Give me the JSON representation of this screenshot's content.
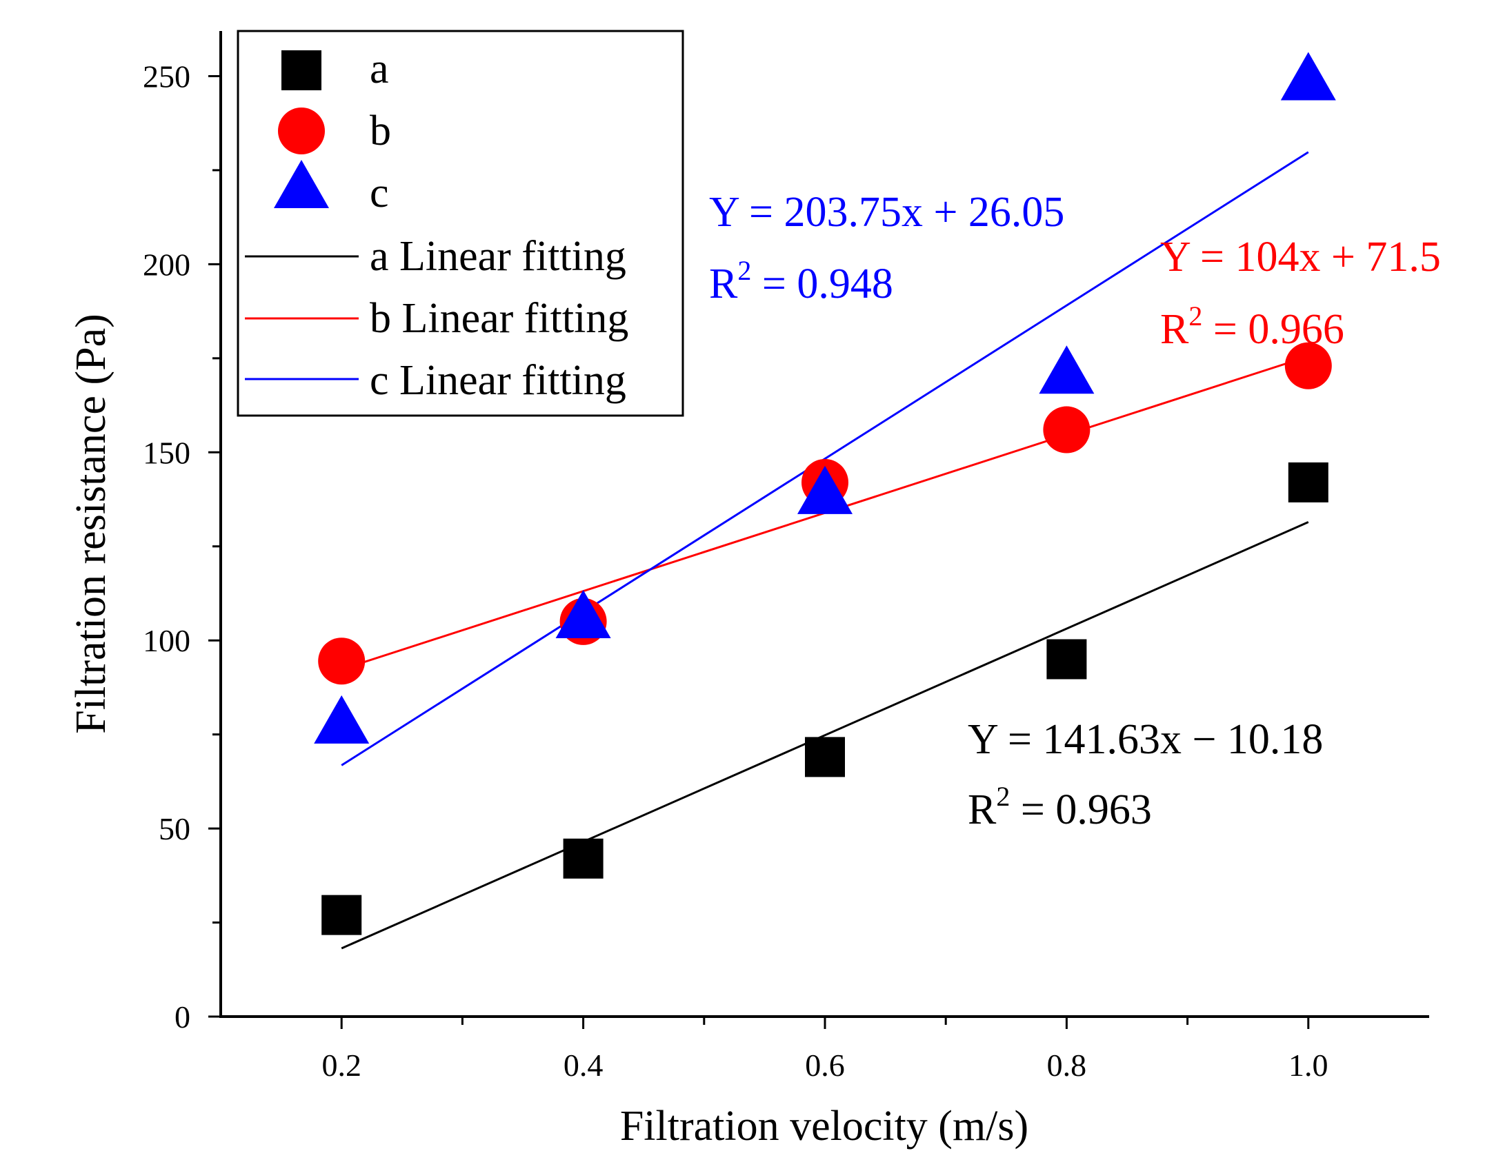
{
  "chart_data": {
    "type": "scatter",
    "title": "",
    "xlabel": "Filtration velocity (m/s)",
    "ylabel": "Filtration resistance (Pa)",
    "xlim": [
      0.1,
      1.1
    ],
    "ylim": [
      0,
      262
    ],
    "x_ticks": [
      0.2,
      0.4,
      0.6,
      0.8,
      1.0
    ],
    "x_tick_labels": [
      "0.2",
      "0.4",
      "0.6",
      "0.8",
      "1.0"
    ],
    "y_ticks": [
      0,
      50,
      100,
      150,
      200,
      250
    ],
    "y_tick_labels": [
      "0",
      "50",
      "100",
      "150",
      "200",
      "250"
    ],
    "grid": false,
    "legend_position": "top-left",
    "series": [
      {
        "name": "a",
        "marker": "square",
        "color": "#000000",
        "x": [
          0.2,
          0.4,
          0.6,
          0.8,
          1.0
        ],
        "values": [
          27,
          42,
          69,
          95,
          142
        ],
        "fit": {
          "name": "a Linear fitting",
          "slope": 141.63,
          "intercept": -10.18,
          "equation": "Y = 141.63x − 10.18",
          "r2_prefix": "R",
          "r2_sup": "2",
          "r2_value": " = 0.963"
        }
      },
      {
        "name": "b",
        "marker": "circle",
        "color": "#ff0000",
        "x": [
          0.2,
          0.4,
          0.6,
          0.8,
          1.0
        ],
        "values": [
          94.5,
          105,
          142,
          156,
          173
        ],
        "fit": {
          "name": "b Linear fitting",
          "slope": 104,
          "intercept": 71.5,
          "equation": "Y = 104x + 71.5",
          "r2_prefix": "R",
          "r2_sup": "2",
          "r2_value": " = 0.966"
        }
      },
      {
        "name": "c",
        "marker": "triangle",
        "color": "#0000ff",
        "x": [
          0.2,
          0.4,
          0.6,
          0.8,
          1.0
        ],
        "values": [
          79,
          107,
          140,
          172,
          250
        ],
        "fit": {
          "name": "c Linear fitting",
          "slope": 203.75,
          "intercept": 26.05,
          "equation": "Y = 203.75x + 26.05",
          "r2_prefix": "R",
          "r2_sup": "2",
          "r2_value": " = 0.948"
        }
      }
    ]
  }
}
